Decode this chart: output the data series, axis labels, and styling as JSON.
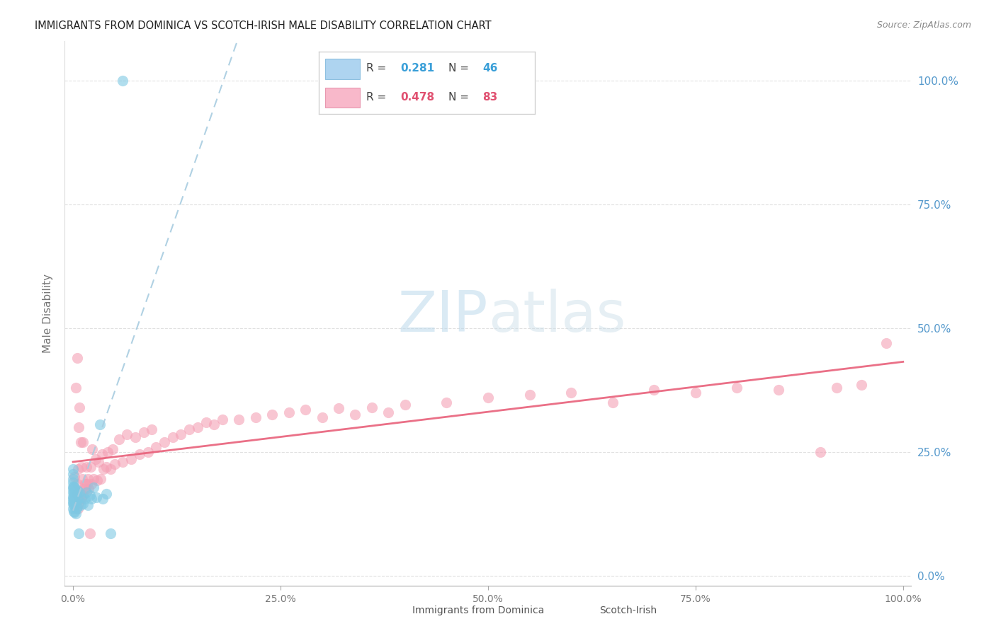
{
  "title": "IMMIGRANTS FROM DOMINICA VS SCOTCH-IRISH MALE DISABILITY CORRELATION CHART",
  "source": "Source: ZipAtlas.com",
  "ylabel": "Male Disability",
  "blue_color": "#7ec8e3",
  "pink_color": "#f4a0b5",
  "blue_line_color": "#a8cce0",
  "pink_line_color": "#e8607a",
  "blue_r": 0.281,
  "blue_n": 46,
  "pink_r": 0.478,
  "pink_n": 83,
  "watermark_color": "#cce5f5",
  "legend_r_color_blue": "#3a9fd8",
  "legend_r_color_pink": "#e05070",
  "right_tick_color": "#5599cc",
  "grid_color": "#dddddd",
  "axis_label_color": "#777777",
  "title_color": "#222222",
  "source_color": "#888888",
  "blue_points_x": [
    0.0,
    0.0,
    0.0,
    0.0,
    0.0,
    0.0,
    0.0,
    0.0,
    0.0,
    0.0,
    0.0,
    0.0,
    0.001,
    0.001,
    0.001,
    0.001,
    0.001,
    0.002,
    0.002,
    0.002,
    0.002,
    0.003,
    0.003,
    0.003,
    0.004,
    0.004,
    0.005,
    0.005,
    0.006,
    0.007,
    0.008,
    0.009,
    0.01,
    0.012,
    0.014,
    0.016,
    0.018,
    0.02,
    0.022,
    0.025,
    0.028,
    0.032,
    0.036,
    0.04,
    0.045,
    0.06
  ],
  "blue_points_y": [
    0.135,
    0.145,
    0.15,
    0.155,
    0.16,
    0.168,
    0.175,
    0.18,
    0.188,
    0.195,
    0.205,
    0.215,
    0.13,
    0.142,
    0.155,
    0.168,
    0.18,
    0.128,
    0.145,
    0.162,
    0.178,
    0.125,
    0.148,
    0.17,
    0.135,
    0.165,
    0.14,
    0.172,
    0.155,
    0.085,
    0.168,
    0.142,
    0.158,
    0.145,
    0.155,
    0.168,
    0.142,
    0.162,
    0.155,
    0.178,
    0.158,
    0.305,
    0.155,
    0.165,
    0.085,
    1.0
  ],
  "pink_points_x": [
    0.002,
    0.003,
    0.004,
    0.005,
    0.005,
    0.006,
    0.006,
    0.007,
    0.007,
    0.008,
    0.008,
    0.009,
    0.009,
    0.01,
    0.01,
    0.011,
    0.012,
    0.012,
    0.013,
    0.014,
    0.015,
    0.016,
    0.017,
    0.018,
    0.019,
    0.02,
    0.021,
    0.022,
    0.023,
    0.025,
    0.027,
    0.029,
    0.031,
    0.033,
    0.035,
    0.037,
    0.04,
    0.042,
    0.045,
    0.048,
    0.05,
    0.055,
    0.06,
    0.065,
    0.07,
    0.075,
    0.08,
    0.085,
    0.09,
    0.095,
    0.1,
    0.11,
    0.12,
    0.13,
    0.14,
    0.15,
    0.16,
    0.17,
    0.18,
    0.2,
    0.22,
    0.24,
    0.26,
    0.28,
    0.3,
    0.32,
    0.34,
    0.36,
    0.38,
    0.4,
    0.45,
    0.5,
    0.55,
    0.6,
    0.65,
    0.7,
    0.75,
    0.8,
    0.85,
    0.9,
    0.92,
    0.95,
    0.98
  ],
  "pink_points_y": [
    0.2,
    0.38,
    0.165,
    0.185,
    0.44,
    0.135,
    0.215,
    0.145,
    0.3,
    0.155,
    0.34,
    0.165,
    0.27,
    0.155,
    0.22,
    0.195,
    0.162,
    0.27,
    0.175,
    0.185,
    0.175,
    0.22,
    0.185,
    0.195,
    0.175,
    0.085,
    0.22,
    0.185,
    0.255,
    0.195,
    0.235,
    0.192,
    0.23,
    0.195,
    0.245,
    0.215,
    0.22,
    0.25,
    0.215,
    0.255,
    0.225,
    0.275,
    0.23,
    0.285,
    0.235,
    0.28,
    0.245,
    0.29,
    0.25,
    0.295,
    0.26,
    0.27,
    0.28,
    0.285,
    0.295,
    0.3,
    0.31,
    0.305,
    0.315,
    0.315,
    0.32,
    0.325,
    0.33,
    0.335,
    0.32,
    0.338,
    0.325,
    0.34,
    0.33,
    0.345,
    0.35,
    0.36,
    0.365,
    0.37,
    0.35,
    0.375,
    0.37,
    0.38,
    0.375,
    0.25,
    0.38,
    0.385,
    0.47
  ]
}
